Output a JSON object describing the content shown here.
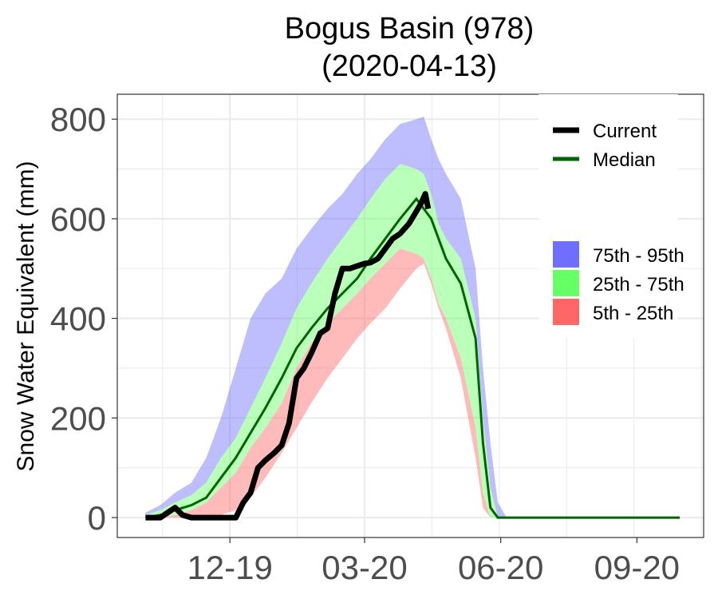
{
  "chart_data": {
    "type": "area",
    "title": "Bogus Basin (978)",
    "subtitle": "(2020-04-13)",
    "xlabel": "",
    "ylabel": "Snow Water Equivalent (mm)",
    "x_range": [
      "2019-10-01",
      "2020-10-01"
    ],
    "ylim": [
      -40,
      850
    ],
    "y_ticks": [
      0,
      200,
      400,
      600,
      800
    ],
    "x_ticks": [
      {
        "date": "2019-12-01",
        "label": "12-19"
      },
      {
        "date": "2020-03-01",
        "label": "03-20"
      },
      {
        "date": "2020-06-01",
        "label": "06-20"
      },
      {
        "date": "2020-09-01",
        "label": "09-20"
      }
    ],
    "grid": true,
    "legend_position": "right",
    "colors": {
      "band_75_95": "#6e6eff",
      "band_25_75": "#66ff66",
      "band_5_25": "#ff6666",
      "current": "#000000",
      "median": "#006400"
    },
    "legend": {
      "lines": [
        {
          "label": "Current",
          "color": "#000000"
        },
        {
          "label": "Median",
          "color": "#006400"
        }
      ],
      "bands": [
        {
          "label": "75th - 95th",
          "color": "#6e6eff"
        },
        {
          "label": "25th - 75th",
          "color": "#66ff66"
        },
        {
          "label": "5th - 25th",
          "color": "#ff6666"
        }
      ]
    },
    "dates": [
      "2019-10-05",
      "2019-10-15",
      "2019-10-25",
      "2019-11-05",
      "2019-11-15",
      "2019-11-25",
      "2019-12-05",
      "2019-12-15",
      "2019-12-25",
      "2020-01-05",
      "2020-01-15",
      "2020-01-25",
      "2020-02-05",
      "2020-02-15",
      "2020-02-25",
      "2020-03-05",
      "2020-03-15",
      "2020-03-25",
      "2020-04-05",
      "2020-04-10",
      "2020-04-15",
      "2020-04-20",
      "2020-04-25",
      "2020-05-05",
      "2020-05-15",
      "2020-05-20",
      "2020-05-25",
      "2020-05-30",
      "2020-06-05",
      "2020-06-10",
      "2020-06-15",
      "2020-06-20",
      "2020-07-01",
      "2020-08-01",
      "2020-09-01",
      "2020-09-30"
    ],
    "p95": [
      10,
      25,
      50,
      70,
      120,
      200,
      300,
      400,
      450,
      480,
      540,
      580,
      620,
      650,
      690,
      720,
      760,
      790,
      800,
      805,
      760,
      720,
      690,
      640,
      500,
      300,
      150,
      30,
      0,
      0,
      0,
      0,
      0,
      0,
      0,
      0
    ],
    "p75": [
      5,
      15,
      30,
      45,
      70,
      120,
      160,
      220,
      280,
      350,
      420,
      470,
      520,
      560,
      600,
      640,
      680,
      710,
      700,
      690,
      650,
      590,
      560,
      520,
      400,
      200,
      60,
      0,
      0,
      0,
      0,
      0,
      0,
      0,
      0,
      0
    ],
    "p25": [
      0,
      0,
      5,
      15,
      30,
      60,
      90,
      140,
      180,
      230,
      300,
      350,
      390,
      420,
      450,
      480,
      510,
      540,
      530,
      520,
      480,
      430,
      400,
      320,
      180,
      50,
      0,
      0,
      0,
      0,
      0,
      0,
      0,
      0,
      0,
      0
    ],
    "p5": [
      0,
      0,
      0,
      0,
      0,
      5,
      15,
      40,
      80,
      130,
      180,
      230,
      280,
      320,
      360,
      390,
      420,
      460,
      500,
      510,
      470,
      420,
      380,
      280,
      120,
      20,
      0,
      0,
      0,
      0,
      0,
      0,
      0,
      0,
      0,
      0
    ],
    "median": [
      0,
      5,
      15,
      25,
      40,
      80,
      120,
      170,
      220,
      280,
      340,
      380,
      420,
      450,
      480,
      520,
      560,
      600,
      640,
      620,
      600,
      560,
      520,
      470,
      360,
      150,
      20,
      0,
      0,
      0,
      0,
      0,
      0,
      0,
      0,
      0
    ],
    "current": {
      "dates": [
        "2019-10-05",
        "2019-10-15",
        "2019-10-20",
        "2019-10-25",
        "2019-10-30",
        "2019-11-05",
        "2019-11-15",
        "2019-11-25",
        "2019-11-30",
        "2019-12-05",
        "2019-12-10",
        "2019-12-15",
        "2019-12-20",
        "2019-12-25",
        "2019-12-31",
        "2020-01-05",
        "2020-01-10",
        "2020-01-15",
        "2020-01-20",
        "2020-01-25",
        "2020-01-31",
        "2020-02-05",
        "2020-02-10",
        "2020-02-15",
        "2020-02-20",
        "2020-02-25",
        "2020-03-01",
        "2020-03-05",
        "2020-03-10",
        "2020-03-15",
        "2020-03-20",
        "2020-03-25",
        "2020-03-31",
        "2020-04-04",
        "2020-04-08",
        "2020-04-11",
        "2020-04-13"
      ],
      "values": [
        0,
        0,
        10,
        20,
        5,
        0,
        0,
        0,
        0,
        0,
        30,
        50,
        100,
        115,
        130,
        145,
        190,
        280,
        300,
        330,
        370,
        380,
        450,
        500,
        500,
        505,
        510,
        512,
        520,
        540,
        560,
        570,
        590,
        610,
        630,
        650,
        620
      ]
    }
  }
}
